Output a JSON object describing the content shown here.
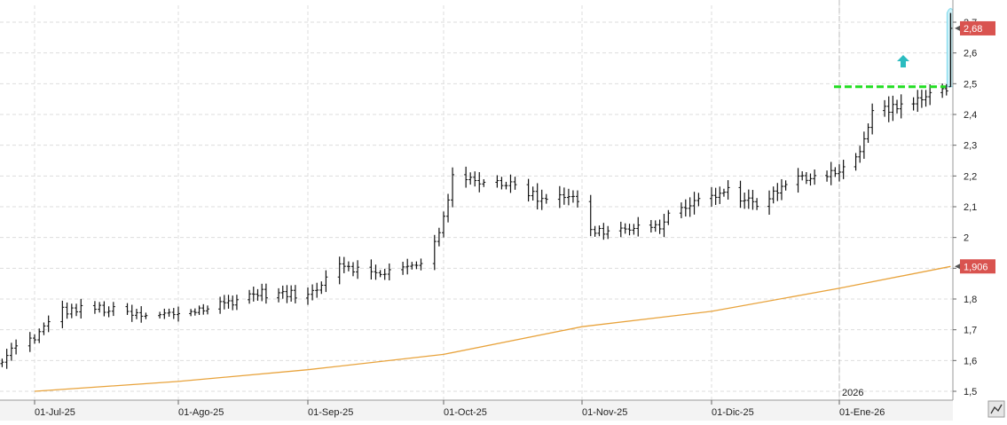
{
  "chart_data": {
    "type": "ohlc",
    "title": "",
    "xlabel": "",
    "ylabel": "",
    "ylim": [
      1.5,
      2.75
    ],
    "y_ticks": [
      "2,7",
      "2,6",
      "2,5",
      "2,4",
      "2,3",
      "2,2",
      "2,1",
      "2",
      "1,9",
      "1,8",
      "1,7",
      "1,6",
      "1,5"
    ],
    "y_tick_values": [
      2.7,
      2.6,
      2.5,
      2.4,
      2.3,
      2.2,
      2.1,
      2.0,
      1.9,
      1.8,
      1.7,
      1.6,
      1.5
    ],
    "x_ticks": [
      "01-Jul-25",
      "01-Ago-25",
      "01-Sep-25",
      "01-Oct-25",
      "01-Nov-25",
      "01-Dic-25",
      "01-Ene-26"
    ],
    "year_marker": "2026",
    "grid": true,
    "last_price_label": "2,68",
    "last_price_value": 2.68,
    "moving_average_label": "1,906",
    "moving_average_value": 1.906,
    "resistance_level": 2.49,
    "moving_average": [
      1.5,
      1.532,
      1.57,
      1.62,
      1.71,
      1.76,
      1.835,
      1.906
    ],
    "moving_average_dates": [
      "2025-07-01",
      "2025-08-01",
      "2025-09-01",
      "2025-10-01",
      "2025-11-01",
      "2025-12-01",
      "2026-01-01",
      "2026-01-28"
    ],
    "anchor_points": [
      {
        "date": "2025-06-24",
        "price": 1.59
      },
      {
        "date": "2025-06-28",
        "price": 1.68
      },
      {
        "date": "2025-07-01",
        "price": 1.66
      },
      {
        "date": "2025-07-05",
        "price": 1.76
      },
      {
        "date": "2025-07-15",
        "price": 1.77
      },
      {
        "date": "2025-07-25",
        "price": 1.74
      },
      {
        "date": "2025-08-08",
        "price": 1.77
      },
      {
        "date": "2025-08-20",
        "price": 1.82
      },
      {
        "date": "2025-09-01",
        "price": 1.81
      },
      {
        "date": "2025-09-08",
        "price": 1.92
      },
      {
        "date": "2025-09-15",
        "price": 1.88
      },
      {
        "date": "2025-09-26",
        "price": 1.91
      },
      {
        "date": "2025-09-30",
        "price": 2.02
      },
      {
        "date": "2025-10-03",
        "price": 2.19
      },
      {
        "date": "2025-10-15",
        "price": 2.18
      },
      {
        "date": "2025-10-22",
        "price": 2.13
      },
      {
        "date": "2025-10-30",
        "price": 2.14
      },
      {
        "date": "2025-11-03",
        "price": 2.02
      },
      {
        "date": "2025-11-18",
        "price": 2.03
      },
      {
        "date": "2025-11-24",
        "price": 2.1
      },
      {
        "date": "2025-12-05",
        "price": 2.15
      },
      {
        "date": "2025-12-12",
        "price": 2.11
      },
      {
        "date": "2025-12-22",
        "price": 2.19
      },
      {
        "date": "2026-01-01",
        "price": 2.22
      },
      {
        "date": "2026-01-06",
        "price": 2.27
      },
      {
        "date": "2026-01-09",
        "price": 2.41
      },
      {
        "date": "2026-01-20",
        "price": 2.44
      },
      {
        "date": "2026-01-26",
        "price": 2.49
      }
    ],
    "bar_range_fraction": 0.015,
    "final_candle": {
      "date": "2026-01-28",
      "open": 2.49,
      "high": 2.73,
      "low": 2.49,
      "close": 2.68
    },
    "colors": {
      "bars": "#111111",
      "moving_average": "#e8a33c",
      "resistance": "#22dd22",
      "highlight": "#cdf2fa",
      "highlight_edge": "#78d7ea",
      "up_arrow": "#2bbcc0",
      "price_tag": "#d9534f",
      "grid": "#dddddd",
      "year_line": "#bbbbbb"
    }
  }
}
